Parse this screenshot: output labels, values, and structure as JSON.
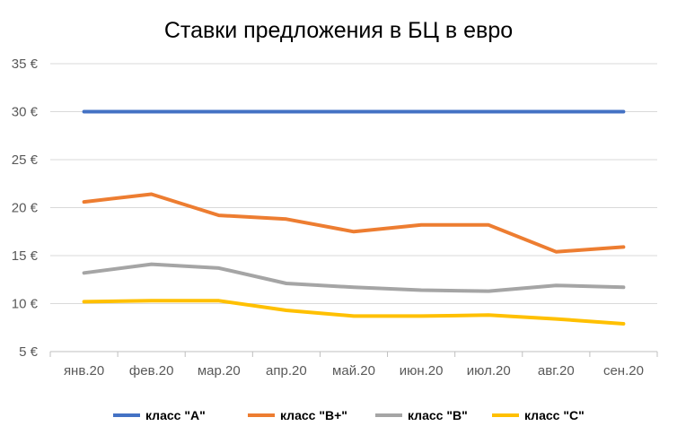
{
  "chart_data": {
    "type": "line",
    "title": "Ставки предложения в БЦ в евро",
    "xlabel": "",
    "ylabel": "",
    "categories": [
      "янв.20",
      "фев.20",
      "мар.20",
      "апр.20",
      "май.20",
      "июн.20",
      "июл.20",
      "авг.20",
      "сен.20"
    ],
    "ylim": [
      5,
      35
    ],
    "yticks": [
      5,
      10,
      15,
      20,
      25,
      30,
      35
    ],
    "ytick_suffix": " €",
    "grid": true,
    "legend_position": "bottom",
    "series": [
      {
        "name": "класс \"A\"",
        "color": "#4472C4",
        "values": [
          30,
          30,
          30,
          30,
          30,
          30,
          30,
          30,
          30
        ]
      },
      {
        "name": "класс \"B+\"",
        "color": "#ED7D31",
        "values": [
          20.6,
          21.4,
          19.2,
          18.8,
          17.5,
          18.2,
          18.2,
          15.4,
          15.9
        ]
      },
      {
        "name": "класс \"B\"",
        "color": "#A5A5A5",
        "values": [
          13.2,
          14.1,
          13.7,
          12.1,
          11.7,
          11.4,
          11.3,
          11.9,
          11.7
        ]
      },
      {
        "name": "класс \"C\"",
        "color": "#FFC000",
        "values": [
          10.2,
          10.3,
          10.3,
          9.3,
          8.7,
          8.7,
          8.8,
          8.4,
          7.9
        ]
      }
    ]
  }
}
